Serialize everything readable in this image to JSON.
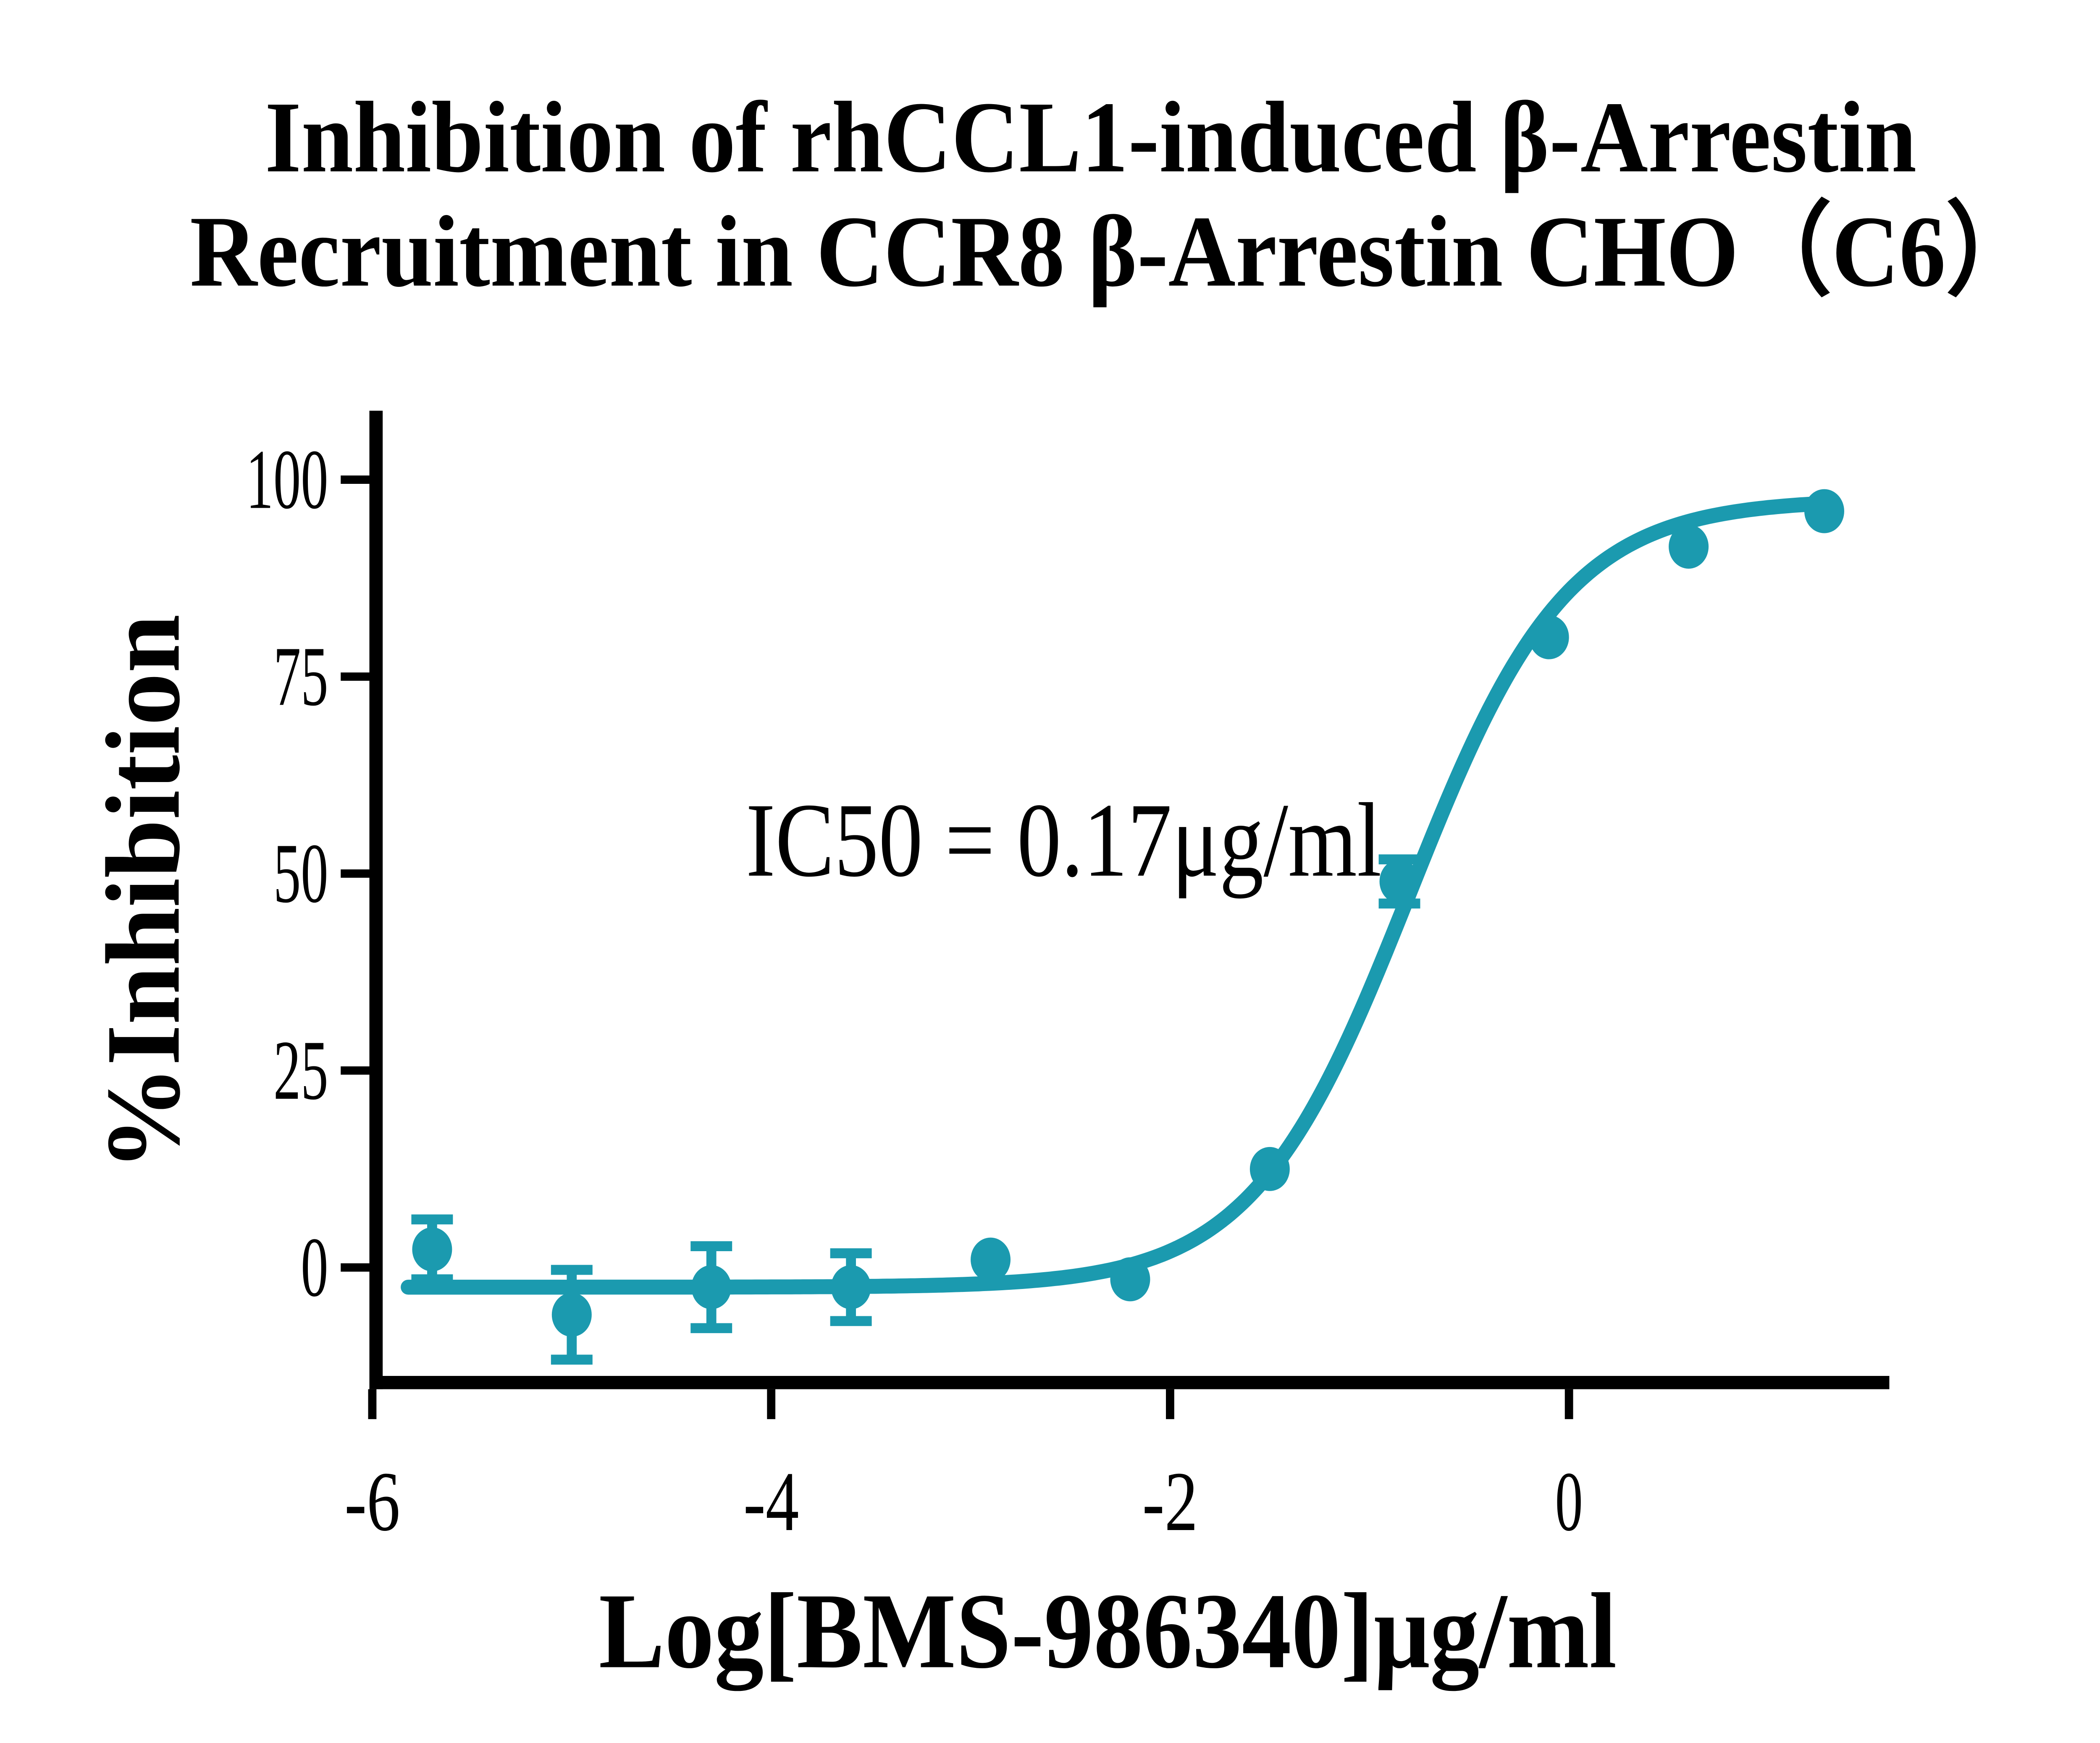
{
  "chart_data": {
    "type": "scatter-line",
    "title_line1": "Inhibition of rhCCL1-induced β-Arrestin",
    "title_line2": "Recruitment  in CCR8 β-Arrestin CHO（C6）",
    "xlabel": "Log[BMS-986340]μg/ml",
    "ylabel": "%Inhibition",
    "annotation": "IC50 = 0.17μg/ml",
    "ic50_value_ug_ml": 0.17,
    "x_ticks": [
      -6,
      -4,
      -2,
      0
    ],
    "y_ticks": [
      0,
      25,
      50,
      75,
      100
    ],
    "x_range": [
      -6,
      1.6
    ],
    "y_range_shown": [
      -14.5,
      107
    ],
    "legend": "none",
    "grid": "off",
    "series_color": "#1B9AAF",
    "axis_color": "#000000",
    "points": [
      {
        "x": -5.7,
        "y": 2.3,
        "err": 3.8
      },
      {
        "x": -5.0,
        "y": -6.0,
        "err": 5.7
      },
      {
        "x": -4.3,
        "y": -2.5,
        "err": 5.2
      },
      {
        "x": -3.6,
        "y": -2.5,
        "err": 4.3
      },
      {
        "x": -2.9,
        "y": 1.0,
        "err": 0
      },
      {
        "x": -2.2,
        "y": -1.5,
        "err": 0
      },
      {
        "x": -1.5,
        "y": 12.5,
        "err": 0
      },
      {
        "x": -0.85,
        "y": 49.0,
        "err": 2.8
      },
      {
        "x": -0.1,
        "y": 80.0,
        "err": 0
      },
      {
        "x": 0.6,
        "y": 91.5,
        "err": 0
      },
      {
        "x": 1.28,
        "y": 96.0,
        "err": 0
      }
    ],
    "curve": {
      "model": "4PL-sigmoid",
      "bottom": -2.5,
      "top": 97.5,
      "logIC50": -0.8,
      "hill": 1.1,
      "x_start": -5.82,
      "x_end": 1.28
    }
  }
}
